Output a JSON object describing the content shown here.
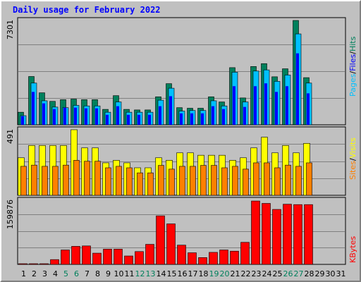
{
  "title": "Daily usage for February 2022",
  "colors": {
    "hits": "#00805c",
    "files": "#0000ff",
    "pages": "#00c0ff",
    "visits": "#ffff00",
    "sites": "#ff8000",
    "kbytes": "#ff0000",
    "weekend": "#00805c",
    "weekday": "#000000",
    "background": "#c0c0c0"
  },
  "right_labels": {
    "panel1": [
      {
        "text": "Pages",
        "color": "#00c0ff"
      },
      {
        "text": "/",
        "color": "#000000"
      },
      {
        "text": "Files",
        "color": "#0000ff"
      },
      {
        "text": "/",
        "color": "#000000"
      },
      {
        "text": "Hits",
        "color": "#00805c"
      }
    ],
    "panel2": [
      {
        "text": "Sites",
        "color": "#ff8000"
      },
      {
        "text": "/",
        "color": "#000000"
      },
      {
        "text": "Visits",
        "color": "#ffff00"
      }
    ],
    "panel3": [
      {
        "text": "KBytes",
        "color": "#ff0000"
      }
    ]
  },
  "chart_data": [
    {
      "type": "bar",
      "name": "Pages / Files / Hits",
      "y_max_label": "7301",
      "ylim": [
        0,
        7301
      ],
      "categories": [
        "1",
        "2",
        "3",
        "4",
        "5",
        "6",
        "7",
        "8",
        "9",
        "10",
        "11",
        "12",
        "13",
        "14",
        "15",
        "16",
        "17",
        "18",
        "19",
        "20",
        "21",
        "22",
        "23",
        "24",
        "25",
        "26",
        "27",
        "28",
        "29",
        "30",
        "31"
      ],
      "weekend_days": [
        "5",
        "6",
        "12",
        "13",
        "19",
        "20",
        "26",
        "27"
      ],
      "series": [
        {
          "name": "Hits",
          "color": "#00805c",
          "values": [
            880,
            3380,
            2240,
            1640,
            1760,
            1800,
            1760,
            1760,
            1080,
            2040,
            1080,
            1040,
            1040,
            1960,
            2880,
            1200,
            1160,
            1160,
            1960,
            1600,
            4000,
            1880,
            4080,
            4280,
            3360,
            3920,
            7301,
            3300,
            null,
            null,
            null
          ]
        },
        {
          "name": "Files",
          "color": "#0000ff",
          "values": [
            600,
            2300,
            1500,
            1100,
            1200,
            1200,
            1150,
            1150,
            700,
            1300,
            700,
            700,
            700,
            1300,
            2000,
            800,
            800,
            800,
            1300,
            1100,
            2700,
            1250,
            2700,
            2900,
            2300,
            2700,
            5000,
            2200,
            null,
            null,
            null
          ]
        },
        {
          "name": "Pages",
          "color": "#00c0ff",
          "values": [
            640,
            2920,
            1680,
            1240,
            1200,
            1360,
            1320,
            1320,
            880,
            1600,
            880,
            880,
            880,
            1720,
            2560,
            960,
            1000,
            1000,
            1680,
            1320,
            3680,
            1600,
            3760,
            3840,
            3040,
            3480,
            6360,
            2920,
            null,
            null,
            null
          ]
        }
      ]
    },
    {
      "type": "bar",
      "name": "Sites / Visits",
      "y_max_label": "491",
      "ylim": [
        0,
        491
      ],
      "categories": [
        "1",
        "2",
        "3",
        "4",
        "5",
        "6",
        "7",
        "8",
        "9",
        "10",
        "11",
        "12",
        "13",
        "14",
        "15",
        "16",
        "17",
        "18",
        "19",
        "20",
        "21",
        "22",
        "23",
        "24",
        "25",
        "26",
        "27",
        "28",
        "29",
        "30",
        "31"
      ],
      "series": [
        {
          "name": "Visits",
          "color": "#ffff00",
          "values": [
            281,
            373,
            373,
            373,
            373,
            491,
            355,
            355,
            243,
            262,
            243,
            206,
            206,
            281,
            262,
            318,
            318,
            300,
            300,
            300,
            262,
            281,
            355,
            435,
            318,
            373,
            318,
            389,
            null,
            null,
            null
          ]
        },
        {
          "name": "Sites",
          "color": "#ff8000",
          "values": [
            217,
            226,
            217,
            217,
            226,
            262,
            255,
            255,
            206,
            217,
            206,
            168,
            168,
            224,
            196,
            217,
            217,
            224,
            224,
            206,
            217,
            196,
            243,
            243,
            206,
            226,
            217,
            243,
            null,
            null,
            null
          ]
        }
      ]
    },
    {
      "type": "bar",
      "name": "KBytes",
      "y_max_label": "159876",
      "ylim": [
        0,
        159876
      ],
      "categories": [
        "1",
        "2",
        "3",
        "4",
        "5",
        "6",
        "7",
        "8",
        "9",
        "10",
        "11",
        "12",
        "13",
        "14",
        "15",
        "16",
        "17",
        "18",
        "19",
        "20",
        "21",
        "22",
        "23",
        "24",
        "25",
        "26",
        "27",
        "28",
        "29",
        "30",
        "31"
      ],
      "series": [
        {
          "name": "KBytes",
          "color": "#ff0000",
          "values": [
            1000,
            1000,
            1000,
            12000,
            36000,
            45000,
            46000,
            28000,
            38000,
            38000,
            21000,
            32000,
            50000,
            121000,
            101000,
            48000,
            29000,
            17000,
            30000,
            36000,
            33000,
            55000,
            158000,
            152000,
            137000,
            150000,
            149000,
            149000,
            null,
            null,
            null
          ]
        }
      ]
    }
  ]
}
